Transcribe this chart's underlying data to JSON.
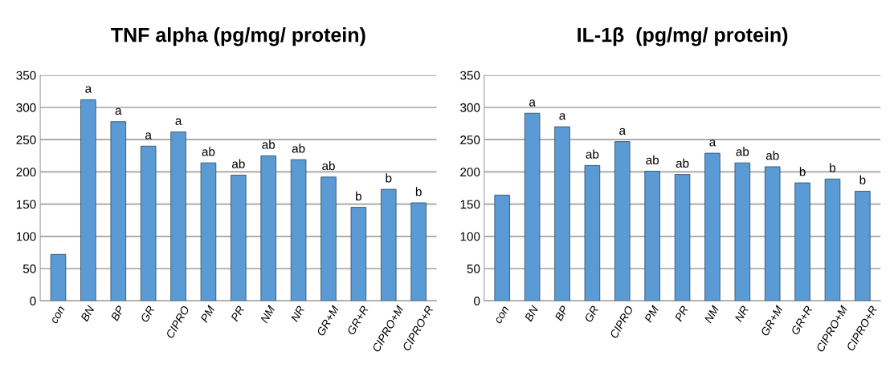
{
  "chart_data": [
    {
      "type": "bar",
      "title": "TNF alpha (pg/mg/ protein)",
      "categories": [
        "con",
        "BN",
        "BP",
        "GR",
        "CIPRO",
        "PM",
        "PR",
        "NM",
        "NR",
        "GR+M",
        "GR+R",
        "CIPRO+M",
        "CIPRO+R"
      ],
      "values": [
        72,
        312,
        278,
        240,
        262,
        214,
        195,
        225,
        219,
        192,
        145,
        173,
        152
      ],
      "value_labels": [
        null,
        "a",
        "a",
        "a",
        "a",
        "ab",
        "ab",
        "ab",
        "ab",
        "ab",
        "b",
        "b",
        "b"
      ],
      "color": "#5b9bd5",
      "ylim": [
        0,
        350
      ],
      "yticks": [
        0,
        50,
        100,
        150,
        200,
        250,
        300,
        350
      ],
      "grid": "y"
    },
    {
      "type": "bar",
      "title": "IL-1β  (pg/mg/ protein)",
      "categories": [
        "con",
        "BN",
        "BP",
        "GR",
        "CIPRO",
        "PM",
        "PR",
        "NM",
        "NR",
        "GR+M",
        "GR+R",
        "CIPRO+M",
        "CIPRO+R"
      ],
      "values": [
        164,
        291,
        270,
        210,
        247,
        201,
        196,
        229,
        214,
        208,
        183,
        189,
        170
      ],
      "value_labels": [
        null,
        "a",
        "a",
        "ab",
        "a",
        "ab",
        "ab",
        "a",
        "ab",
        "ab",
        "b",
        "b",
        "b"
      ],
      "color": "#5b9bd5",
      "ylim": [
        0,
        350
      ],
      "yticks": [
        0,
        50,
        100,
        150,
        200,
        250,
        300,
        350
      ],
      "grid": "y"
    }
  ]
}
